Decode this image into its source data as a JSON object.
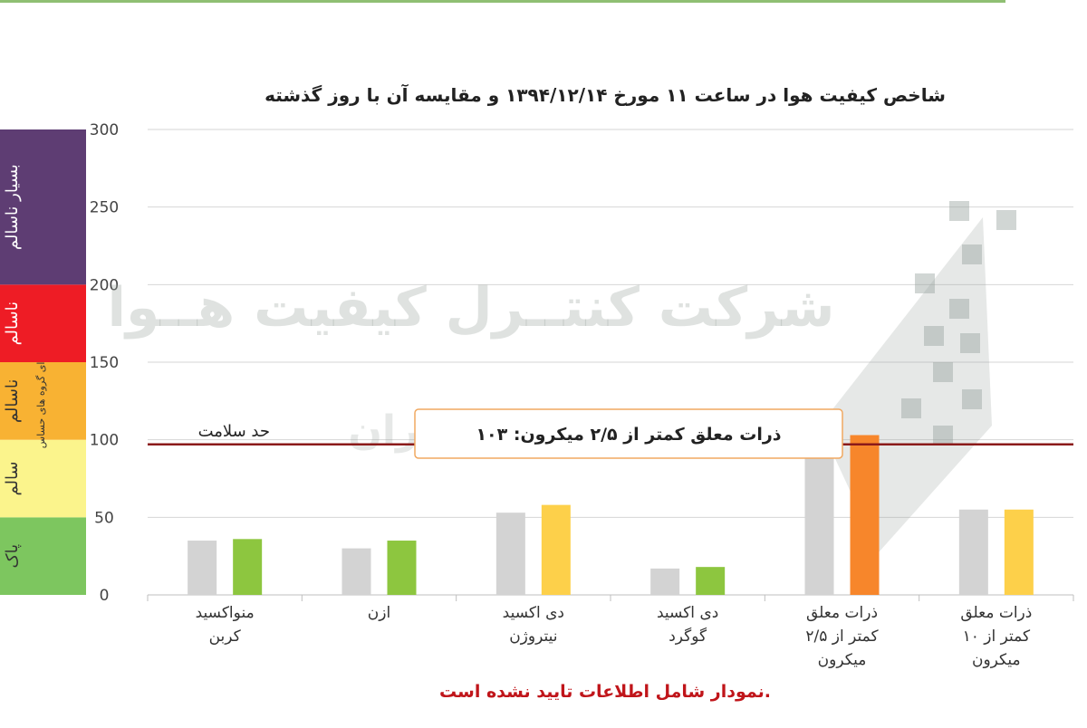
{
  "chart_data": {
    "type": "bar",
    "title": "شاخص کیفیت هوا در ساعت ۱۱ مورخ ۱۳۹۴/۱۲/۱۴ و مقایسه آن با روز گذشته",
    "ylim": [
      0,
      300
    ],
    "yticks": [
      "0",
      "50",
      "100",
      "150",
      "200",
      "250",
      "300"
    ],
    "grid": true,
    "categories": [
      [
        "منواکسید",
        "کربن"
      ],
      [
        "ازن"
      ],
      [
        "دی اکسید",
        "نیتروژن"
      ],
      [
        "دی اکسید",
        "گوگرد"
      ],
      [
        "ذرات معلق",
        "کمتر از ۲/۵",
        "میکرون"
      ],
      [
        "ذرات معلق",
        "کمتر از ۱۰",
        "میکرون"
      ]
    ],
    "series": [
      {
        "values": [
          35,
          30,
          53,
          17,
          92,
          55
        ],
        "colors": [
          "#d3d3d3",
          "#d3d3d3",
          "#d3d3d3",
          "#d3d3d3",
          "#d3d3d3",
          "#d3d3d3"
        ]
      },
      {
        "values": [
          36,
          35,
          58,
          18,
          103,
          55
        ],
        "colors": [
          "#8dc63f",
          "#8dc63f",
          "#fdd04a",
          "#8dc63f",
          "#f7862b",
          "#fdd04a"
        ]
      }
    ],
    "reference_line": {
      "value": 97,
      "label": "حد سلامت",
      "color": "#8b1a1a"
    },
    "tooltip": {
      "text": "ذرات معلق کمتر از ۲/۵ میکرون: ۱۰۳"
    },
    "aqi_bands": [
      {
        "from": 0,
        "to": 50,
        "color": "#7dc65f",
        "label": "پاک"
      },
      {
        "from": 50,
        "to": 100,
        "color": "#fbf48c",
        "label": "سالم"
      },
      {
        "from": 100,
        "to": 150,
        "color": "#f8b233",
        "label": "ناسالم",
        "sublabel": "برای گروه های حساس"
      },
      {
        "from": 150,
        "to": 200,
        "color": "#ee1c25",
        "label": "ناسالم"
      },
      {
        "from": 200,
        "to": 300,
        "color": "#5e3d73",
        "label": "بسیار ناسالم"
      }
    ],
    "watermark": {
      "line1": "شرکت کنتــرل کیفیت هــوا",
      "line2": "استان تهران"
    },
    "footnote": "نمودار شامل اطلاعات تایید نشده است."
  }
}
